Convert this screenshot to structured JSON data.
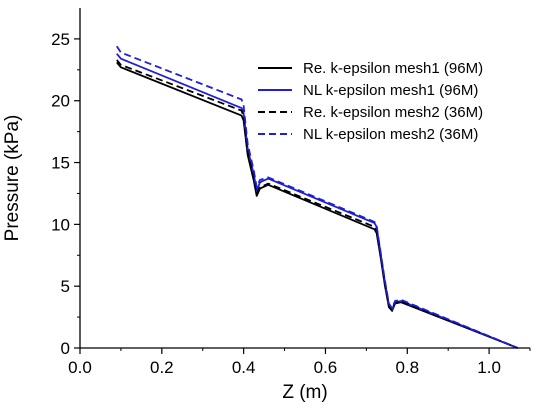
{
  "chart_data": {
    "type": "line",
    "xlabel": "Z (m)",
    "ylabel": "Pressure (kPa)",
    "xlim": [
      0.0,
      1.1
    ],
    "ylim": [
      0,
      27.5
    ],
    "xticks": [
      0.0,
      0.2,
      0.4,
      0.6,
      0.8,
      1.0
    ],
    "xtick_labels": [
      "0.0",
      "0.2",
      "0.4",
      "0.6",
      "0.8",
      "1.0"
    ],
    "yticks": [
      0,
      5,
      10,
      15,
      20,
      25
    ],
    "ytick_labels": [
      "0",
      "5",
      "10",
      "15",
      "20",
      "25"
    ],
    "grid": false,
    "legend_position": "top-right",
    "series": [
      {
        "name": "Re. k-epsilon mesh1 (96M)",
        "color": "#000000",
        "dash": "solid",
        "x": [
          0.09,
          0.1,
          0.395,
          0.4,
          0.41,
          0.425,
          0.432,
          0.44,
          0.46,
          0.72,
          0.725,
          0.735,
          0.745,
          0.755,
          0.763,
          0.77,
          0.785,
          1.07
        ],
        "y": [
          23.1,
          22.7,
          18.8,
          18.4,
          15.6,
          13.5,
          12.3,
          12.9,
          13.2,
          9.6,
          9.3,
          7.3,
          5.1,
          3.3,
          3.0,
          3.6,
          3.7,
          0.0
        ]
      },
      {
        "name": "NL k-epsilon mesh1 (96M)",
        "color": "#1f1fd6",
        "dash": "solid",
        "x": [
          0.09,
          0.1,
          0.395,
          0.4,
          0.41,
          0.425,
          0.432,
          0.44,
          0.46,
          0.72,
          0.725,
          0.735,
          0.745,
          0.755,
          0.763,
          0.77,
          0.785,
          1.07
        ],
        "y": [
          23.8,
          23.4,
          19.4,
          19.0,
          16.1,
          14.0,
          12.7,
          13.4,
          13.7,
          10.1,
          9.8,
          7.6,
          5.4,
          3.5,
          3.1,
          3.7,
          3.8,
          0.0
        ]
      },
      {
        "name": "Re. k-epsilon mesh2 (36M)",
        "color": "#000000",
        "dash": "dashed",
        "x": [
          0.09,
          0.1,
          0.395,
          0.4,
          0.41,
          0.425,
          0.432,
          0.44,
          0.46,
          0.72,
          0.725,
          0.735,
          0.745,
          0.755,
          0.763,
          0.77,
          0.785,
          1.07
        ],
        "y": [
          23.3,
          22.9,
          19.2,
          18.7,
          15.8,
          13.6,
          12.5,
          13.0,
          13.3,
          9.8,
          9.5,
          7.4,
          5.2,
          3.4,
          3.1,
          3.6,
          3.8,
          0.0
        ]
      },
      {
        "name": "NL k-epsilon mesh2 (36M)",
        "color": "#1f1fd6",
        "dash": "dashed",
        "x": [
          0.09,
          0.1,
          0.395,
          0.4,
          0.41,
          0.425,
          0.432,
          0.44,
          0.46,
          0.72,
          0.725,
          0.735,
          0.745,
          0.755,
          0.763,
          0.77,
          0.785,
          1.07
        ],
        "y": [
          24.4,
          23.9,
          20.1,
          19.6,
          16.5,
          14.3,
          13.0,
          13.6,
          13.8,
          10.2,
          9.9,
          7.7,
          5.5,
          3.6,
          3.2,
          3.8,
          3.9,
          0.0
        ]
      }
    ]
  }
}
